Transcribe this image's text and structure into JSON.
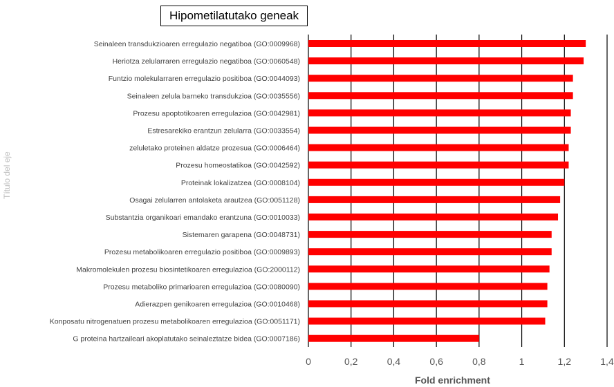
{
  "chart_data": {
    "type": "bar",
    "orientation": "horizontal",
    "title": "Hipometilatutako geneak",
    "xlabel": "Fold enrichment",
    "ylabel": "Título del eje",
    "xlim": [
      0,
      1.4
    ],
    "x_ticks": [
      "0",
      "0,2",
      "0,4",
      "0,6",
      "0,8",
      "1",
      "1,2",
      "1,4"
    ],
    "grid": "vertical",
    "bar_color": "#ff0000",
    "categories": [
      "Seinaleen transdukzioaren erregulazio negatiboa (GO:0009968)",
      "Heriotza zelularraren erregulazio negatiboa (GO:0060548)",
      "Funtzio molekularraren erregulazio positiboa (GO:0044093)",
      "Seinaleen zelula barneko transdukzioa (GO:0035556)",
      "Prozesu apoptotikoaren erregulazioa (GO:0042981)",
      "Estresarekiko erantzun zelularra (GO:0033554)",
      "zeluletako proteinen aldatze prozesua (GO:0006464)",
      "Prozesu homeostatikoa (GO:0042592)",
      "Proteinak lokalizatzea (GO:0008104)",
      "Osagai zelularren antolaketa arautzea (GO:0051128)",
      "Substantzia organikoari emandako erantzuna (GO:0010033)",
      "Sistemaren garapena (GO:0048731)",
      "Prozesu metabolikoaren erregulazio positiboa (GO:0009893)",
      "Makromolekulen prozesu biosintetikoaren erregulazioa (GO:2000112)",
      "Prozesu metaboliko primarioaren erregulazioa (GO:0080090)",
      "Adierazpen genikoaren erregulazioa (GO:0010468)",
      "Konposatu nitrogenatuen prozesu metabolikoaren erregulazioa (GO:0051171)",
      "G proteina hartzaileari akoplatutako seinaleztatze bidea (GO:0007186)"
    ],
    "values": [
      1.3,
      1.29,
      1.24,
      1.24,
      1.23,
      1.23,
      1.22,
      1.22,
      1.2,
      1.18,
      1.17,
      1.14,
      1.14,
      1.13,
      1.12,
      1.12,
      1.11,
      0.8
    ]
  }
}
